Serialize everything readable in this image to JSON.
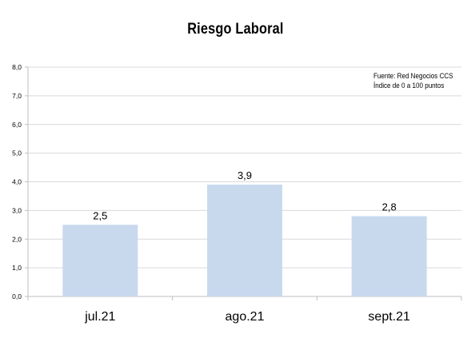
{
  "chart_data": {
    "type": "bar",
    "title": "Riesgo Laboral",
    "categories": [
      "jul.21",
      "ago.21",
      "sept.21"
    ],
    "values": [
      2.5,
      3.9,
      2.8
    ],
    "data_labels": [
      "2,5",
      "3,9",
      "2,8"
    ],
    "ylim": [
      0,
      8
    ],
    "yticks": [
      "0,0",
      "1,0",
      "2,0",
      "3,0",
      "4,0",
      "5,0",
      "6,0",
      "7,0",
      "8,0"
    ],
    "xlabel": "",
    "ylabel": "",
    "grid": true,
    "legend": "none",
    "annotations": [
      "Fuente: Red Negocios CCS",
      "Índice de 0 a 100 puntos"
    ],
    "colors": {
      "bar": "#c8d9ee",
      "grid": "#d9d9d9",
      "axis": "#bfbfbf"
    }
  }
}
